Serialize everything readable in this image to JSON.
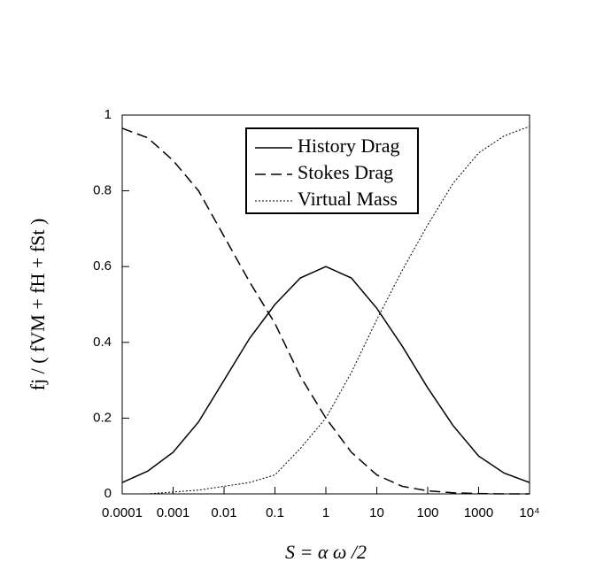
{
  "chart_data": {
    "type": "line",
    "xlabel": "S = α ω /2",
    "ylabel": "fj / ( fVM + fH + fSt )",
    "xscale": "log",
    "x": [
      0.0001,
      0.000316,
      0.001,
      0.00316,
      0.01,
      0.0316,
      0.1,
      0.316,
      1,
      3.16,
      10,
      31.6,
      100,
      316,
      1000,
      3162,
      10000
    ],
    "series": [
      {
        "name": "History Drag",
        "color": "#000000",
        "dash": "solid",
        "values": [
          0.03,
          0.06,
          0.11,
          0.19,
          0.3,
          0.41,
          0.5,
          0.57,
          0.6,
          0.57,
          0.49,
          0.39,
          0.28,
          0.18,
          0.1,
          0.055,
          0.03
        ]
      },
      {
        "name": "Stokes Drag",
        "color": "#000000",
        "dash": "dashed",
        "values": [
          0.965,
          0.94,
          0.88,
          0.8,
          0.68,
          0.56,
          0.45,
          0.31,
          0.2,
          0.11,
          0.05,
          0.02,
          0.008,
          0.003,
          0.001,
          0,
          0
        ]
      },
      {
        "name": "Virtual Mass",
        "color": "#000000",
        "dash": "dotted",
        "values": [
          0.0,
          0.0,
          0.005,
          0.01,
          0.02,
          0.03,
          0.05,
          0.12,
          0.2,
          0.32,
          0.46,
          0.59,
          0.71,
          0.82,
          0.9,
          0.945,
          0.97
        ]
      }
    ],
    "xlim": [
      0.0001,
      10000
    ],
    "xticks": [
      0.0001,
      0.001,
      0.01,
      0.1,
      1,
      10,
      100,
      1000,
      {
        "value": 10000,
        "label": "10⁴"
      }
    ],
    "ylim": [
      0,
      1
    ],
    "yticks": [
      0,
      0.2,
      0.4,
      0.6,
      0.8,
      1
    ],
    "grid": false,
    "legend": "top"
  }
}
